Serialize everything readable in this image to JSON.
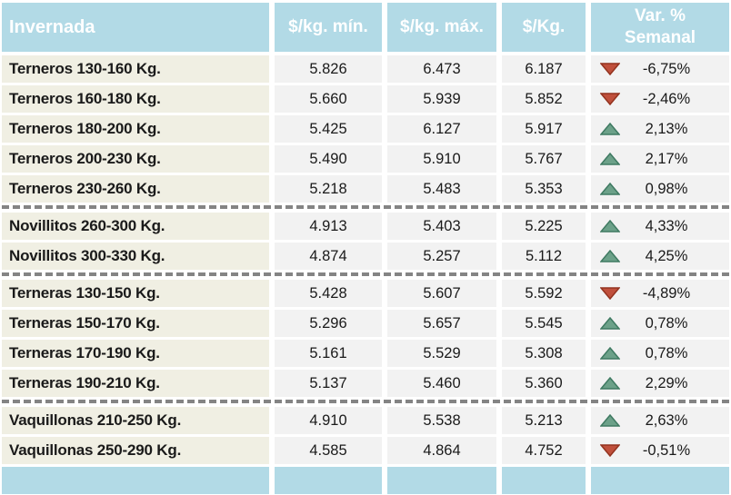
{
  "header": {
    "invernada": "Invernada",
    "kg_min": "$/kg. mín.",
    "kg_max": "$/kg. máx.",
    "kg": "$/Kg.",
    "var_line1": "Var. %",
    "var_line2": "Semanal"
  },
  "colors": {
    "header_bg": "#b2dae6",
    "label_bg": "#f0efe3",
    "cell_bg": "#f2f2f2",
    "footer_bg": "#b2dae6",
    "up_arrow": "#6ca189",
    "up_arrow_border": "#3f7a62",
    "down_arrow": "#c0503c",
    "down_arrow_border": "#93331f",
    "separator": "#848484",
    "text": "#1a1a1a"
  },
  "chart_data": {
    "type": "table",
    "title": "Invernada",
    "columns": [
      "Invernada",
      "$/kg. mín.",
      "$/kg. máx.",
      "$/Kg.",
      "Var. % Semanal"
    ],
    "rows": [
      {
        "label": "Terneros 130-160 Kg.",
        "min": "5.826",
        "max": "6.473",
        "avg": "6.187",
        "direction": "down",
        "var_pct": "-6,75%",
        "separator_after": false
      },
      {
        "label": "Terneros 160-180 Kg.",
        "min": "5.660",
        "max": "5.939",
        "avg": "5.852",
        "direction": "down",
        "var_pct": "-2,46%",
        "separator_after": false
      },
      {
        "label": "Terneros 180-200 Kg.",
        "min": "5.425",
        "max": "6.127",
        "avg": "5.917",
        "direction": "up",
        "var_pct": "2,13%",
        "separator_after": false
      },
      {
        "label": "Terneros 200-230 Kg.",
        "min": "5.490",
        "max": "5.910",
        "avg": "5.767",
        "direction": "up",
        "var_pct": "2,17%",
        "separator_after": false
      },
      {
        "label": "Terneros 230-260 Kg.",
        "min": "5.218",
        "max": "5.483",
        "avg": "5.353",
        "direction": "up",
        "var_pct": "0,98%",
        "separator_after": true
      },
      {
        "label": "Novillitos 260-300 Kg.",
        "min": "4.913",
        "max": "5.403",
        "avg": "5.225",
        "direction": "up",
        "var_pct": "4,33%",
        "separator_after": false
      },
      {
        "label": "Novillitos 300-330 Kg.",
        "min": "4.874",
        "max": "5.257",
        "avg": "5.112",
        "direction": "up",
        "var_pct": "4,25%",
        "separator_after": true
      },
      {
        "label": "Terneras 130-150 Kg.",
        "min": "5.428",
        "max": "5.607",
        "avg": "5.592",
        "direction": "down",
        "var_pct": "-4,89%",
        "separator_after": false
      },
      {
        "label": "Terneras 150-170 Kg.",
        "min": "5.296",
        "max": "5.657",
        "avg": "5.545",
        "direction": "up",
        "var_pct": "0,78%",
        "separator_after": false
      },
      {
        "label": "Terneras 170-190 Kg.",
        "min": "5.161",
        "max": "5.529",
        "avg": "5.308",
        "direction": "up",
        "var_pct": "0,78%",
        "separator_after": false
      },
      {
        "label": "Terneras 190-210 Kg.",
        "min": "5.137",
        "max": "5.460",
        "avg": "5.360",
        "direction": "up",
        "var_pct": "2,29%",
        "separator_after": true
      },
      {
        "label": "Vaquillonas 210-250 Kg.",
        "min": "4.910",
        "max": "5.538",
        "avg": "5.213",
        "direction": "up",
        "var_pct": "2,63%",
        "separator_after": false
      },
      {
        "label": "Vaquillonas 250-290 Kg.",
        "min": "4.585",
        "max": "4.864",
        "avg": "4.752",
        "direction": "down",
        "var_pct": "-0,51%",
        "separator_after": false
      }
    ]
  }
}
